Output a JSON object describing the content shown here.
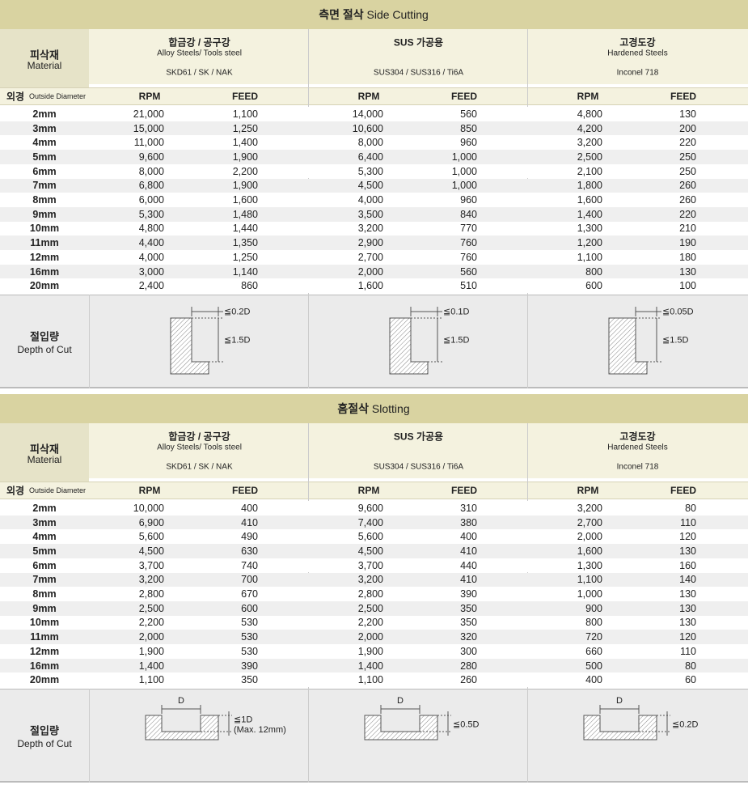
{
  "tables": [
    {
      "title_ko": "측면 절삭",
      "title_en": "Side Cutting",
      "material_label_ko": "피삭재",
      "material_label_en": "Material",
      "materials": [
        {
          "name_ko": "합금강 / 공구강",
          "name_en": "Alloy Steels/ Tools steel",
          "grades": "SKD61 / SK / NAK"
        },
        {
          "name_ko": "SUS 가공용",
          "name_en": "",
          "grades": "SUS304 / SUS316 / Ti6A"
        },
        {
          "name_ko": "고경도강",
          "name_en": "Hardened Steels",
          "grades": "Inconel 718"
        }
      ],
      "diameter_label_ko": "외경",
      "diameter_label_en": "Outside Diameter",
      "col_rpm": "RPM",
      "col_feed": "FEED",
      "rows": [
        [
          "2mm",
          "21,000",
          "1,100",
          "14,000",
          "560",
          "4,800",
          "130"
        ],
        [
          "3mm",
          "15,000",
          "1,250",
          "10,600",
          "850",
          "4,200",
          "200"
        ],
        [
          "4mm",
          "11,000",
          "1,400",
          "8,000",
          "960",
          "3,200",
          "220"
        ],
        [
          "5mm",
          "9,600",
          "1,900",
          "6,400",
          "1,000",
          "2,500",
          "250"
        ],
        [
          "6mm",
          "8,000",
          "2,200",
          "5,300",
          "1,000",
          "2,100",
          "250"
        ],
        [
          "7mm",
          "6,800",
          "1,900",
          "4,500",
          "1,000",
          "1,800",
          "260"
        ],
        [
          "8mm",
          "6,000",
          "1,600",
          "4,000",
          "960",
          "1,600",
          "260"
        ],
        [
          "9mm",
          "5,300",
          "1,480",
          "3,500",
          "840",
          "1,400",
          "220"
        ],
        [
          "10mm",
          "4,800",
          "1,440",
          "3,200",
          "770",
          "1,300",
          "210"
        ],
        [
          "11mm",
          "4,400",
          "1,350",
          "2,900",
          "760",
          "1,200",
          "190"
        ],
        [
          "12mm",
          "4,000",
          "1,250",
          "2,700",
          "760",
          "1,100",
          "180"
        ],
        [
          "16mm",
          "3,000",
          "1,140",
          "2,000",
          "560",
          "800",
          "130"
        ],
        [
          "20mm",
          "2,400",
          "860",
          "1,600",
          "510",
          "600",
          "100"
        ]
      ],
      "depth_label_ko": "절입량",
      "depth_label_en": "Depth of Cut",
      "depth": [
        {
          "width": "≦0.2D",
          "depth": "≦1.5D"
        },
        {
          "width": "≦0.1D",
          "depth": "≦1.5D"
        },
        {
          "width": "≦0.05D",
          "depth": "≦1.5D"
        }
      ]
    },
    {
      "title_ko": "홈절삭",
      "title_en": "Slotting",
      "material_label_ko": "피삭재",
      "material_label_en": "Material",
      "materials": [
        {
          "name_ko": "합금강 / 공구강",
          "name_en": "Alloy Steels/ Tools steel",
          "grades": "SKD61 / SK / NAK"
        },
        {
          "name_ko": "SUS 가공용",
          "name_en": "",
          "grades": "SUS304 / SUS316 / Ti6A"
        },
        {
          "name_ko": "고경도강",
          "name_en": "Hardened Steels",
          "grades": "Inconel 718"
        }
      ],
      "diameter_label_ko": "외경",
      "diameter_label_en": "Outside Diameter",
      "col_rpm": "RPM",
      "col_feed": "FEED",
      "rows": [
        [
          "2mm",
          "10,000",
          "400",
          "9,600",
          "310",
          "3,200",
          "80"
        ],
        [
          "3mm",
          "6,900",
          "410",
          "7,400",
          "380",
          "2,700",
          "110"
        ],
        [
          "4mm",
          "5,600",
          "490",
          "5,600",
          "400",
          "2,000",
          "120"
        ],
        [
          "5mm",
          "4,500",
          "630",
          "4,500",
          "410",
          "1,600",
          "130"
        ],
        [
          "6mm",
          "3,700",
          "740",
          "3,700",
          "440",
          "1,300",
          "160"
        ],
        [
          "7mm",
          "3,200",
          "700",
          "3,200",
          "410",
          "1,100",
          "140"
        ],
        [
          "8mm",
          "2,800",
          "670",
          "2,800",
          "390",
          "1,000",
          "130"
        ],
        [
          "9mm",
          "2,500",
          "600",
          "2,500",
          "350",
          "900",
          "130"
        ],
        [
          "10mm",
          "2,200",
          "530",
          "2,200",
          "350",
          "800",
          "130"
        ],
        [
          "11mm",
          "2,000",
          "530",
          "2,000",
          "320",
          "720",
          "120"
        ],
        [
          "12mm",
          "1,900",
          "530",
          "1,900",
          "300",
          "660",
          "110"
        ],
        [
          "16mm",
          "1,400",
          "390",
          "1,400",
          "280",
          "500",
          "80"
        ],
        [
          "20mm",
          "1,100",
          "350",
          "1,100",
          "260",
          "400",
          "60"
        ]
      ],
      "depth_label_ko": "절입량",
      "depth_label_en": "Depth of Cut",
      "depth": [
        {
          "top": "D",
          "side": "≦1D",
          "note": "(Max. 12mm)"
        },
        {
          "top": "D",
          "side": "≦0.5D"
        },
        {
          "top": "D",
          "side": "≦0.2D"
        }
      ]
    }
  ]
}
